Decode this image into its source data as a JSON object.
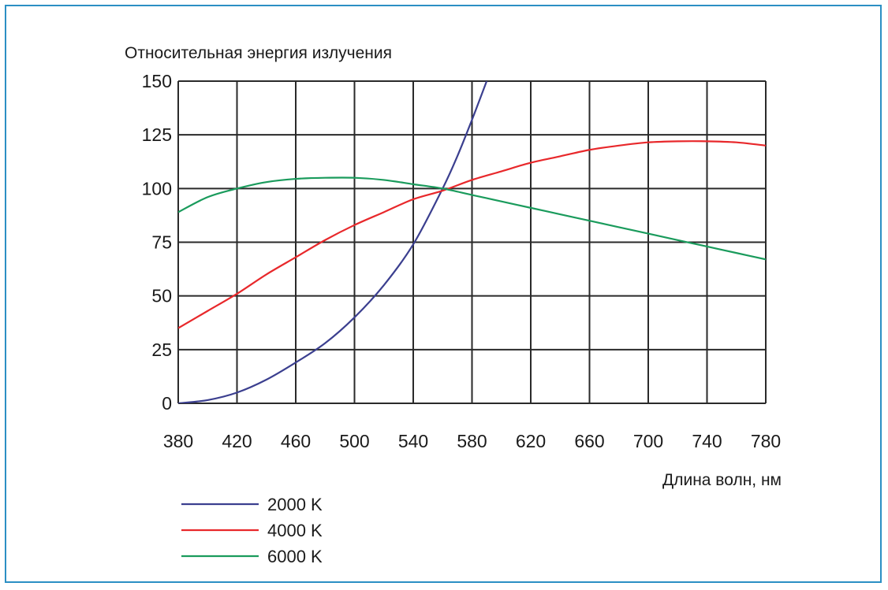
{
  "chart_data": {
    "type": "line",
    "ylabel": "Относительная энергия излучения",
    "xlabel": "Длина волн, нм",
    "xlim": [
      380,
      780
    ],
    "ylim": [
      0,
      150
    ],
    "x_ticks": [
      380,
      420,
      460,
      500,
      540,
      580,
      620,
      660,
      700,
      740,
      780
    ],
    "y_ticks": [
      0,
      25,
      50,
      75,
      100,
      125,
      150
    ],
    "grid": true,
    "legend_position": "bottom-left",
    "series": [
      {
        "name": "2000 K",
        "color": "#3b3f8f",
        "x": [
          380,
          400,
          420,
          440,
          460,
          480,
          500,
          520,
          540,
          560,
          570,
          580,
          590
        ],
        "y": [
          0,
          1.5,
          5,
          11,
          19,
          28,
          40,
          55,
          74,
          100,
          115,
          132,
          150
        ]
      },
      {
        "name": "4000 K",
        "color": "#e8282b",
        "x": [
          380,
          400,
          420,
          440,
          460,
          480,
          500,
          520,
          540,
          560,
          580,
          600,
          620,
          640,
          660,
          680,
          700,
          720,
          740,
          760,
          780
        ],
        "y": [
          35,
          43,
          51,
          60,
          68,
          76,
          83,
          89,
          95,
          99,
          104,
          108,
          112,
          115,
          118,
          120,
          121.5,
          122,
          122,
          121.5,
          120
        ]
      },
      {
        "name": "6000 K",
        "color": "#1a9b5c",
        "x": [
          380,
          400,
          420,
          440,
          460,
          480,
          500,
          520,
          540,
          560,
          580,
          600,
          620,
          640,
          660,
          680,
          700,
          720,
          740,
          760,
          780
        ],
        "y": [
          89,
          96,
          100,
          103,
          104.5,
          105,
          105,
          104,
          102,
          100,
          97,
          94,
          91,
          88,
          85,
          82,
          79,
          76,
          73,
          70,
          67
        ]
      }
    ]
  }
}
